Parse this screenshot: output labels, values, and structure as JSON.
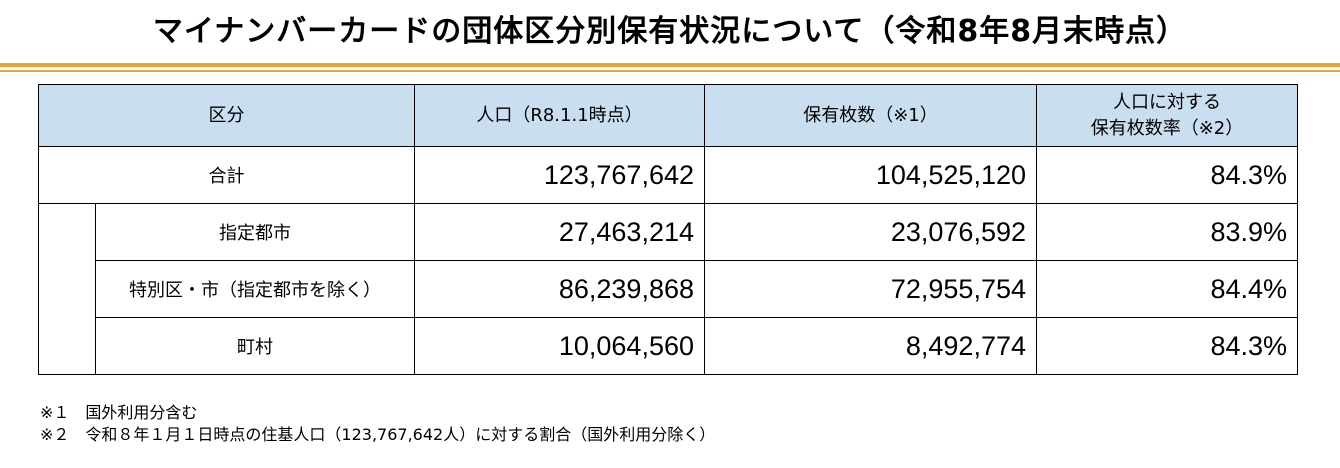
{
  "title": "マイナンバーカードの団体区分別保有状況について（令和8年8月末時点）",
  "table": {
    "headers": {
      "category": "区分",
      "population": "人口（R8.1.1時点）",
      "holdings": "保有枚数（※1）",
      "rate_line1": "人口に対する",
      "rate_line2": "保有枚数率（※2）"
    },
    "rows": [
      {
        "label": "合計",
        "population": "123,767,642",
        "holdings": "104,525,120",
        "rate": "84.3%"
      },
      {
        "label": "指定都市",
        "population": "27,463,214",
        "holdings": "23,076,592",
        "rate": "83.9%"
      },
      {
        "label": "特別区・市（指定都市を除く）",
        "population": "86,239,868",
        "holdings": "72,955,754",
        "rate": "84.4%"
      },
      {
        "label": "町村",
        "population": "10,064,560",
        "holdings": "8,492,774",
        "rate": "84.3%"
      }
    ]
  },
  "notes": [
    "※１　国外利用分含む",
    "※２　令和８年１月１日時点の住基人口（123,767,642人）に対する割合（国外利用分除く）"
  ],
  "colors": {
    "header_bg": "#c9dff0",
    "accent_rule": "#f0a035"
  }
}
